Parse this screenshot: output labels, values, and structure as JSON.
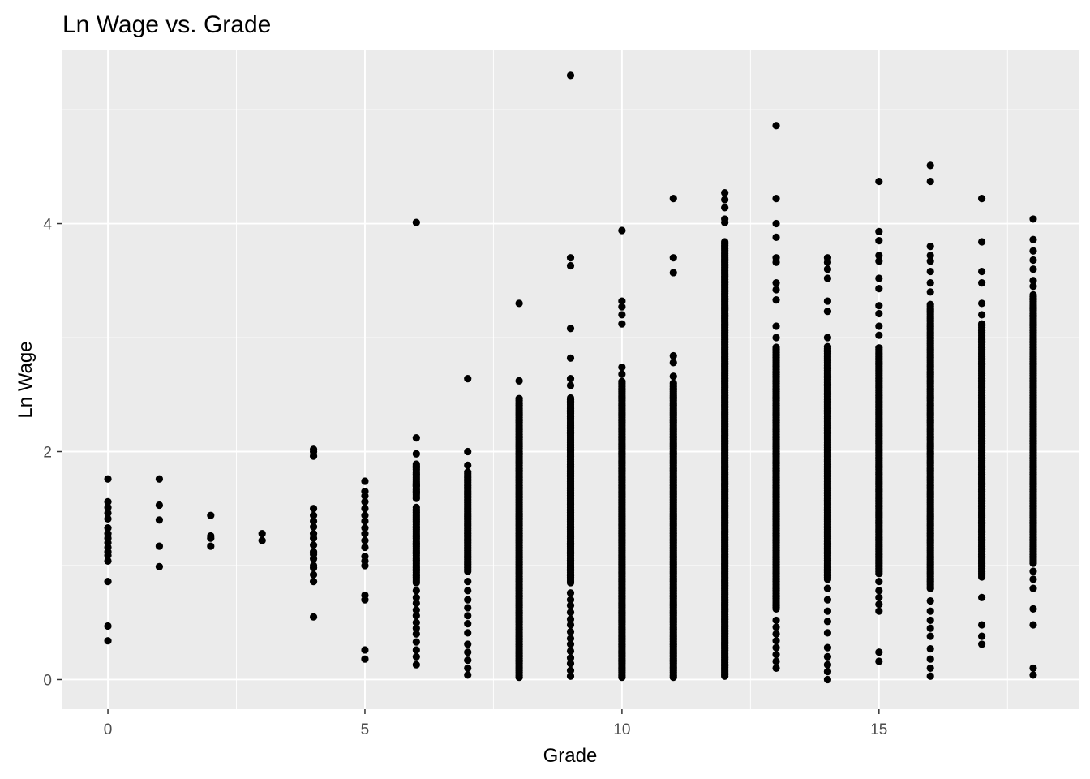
{
  "chart_data": {
    "type": "scatter",
    "title": "Ln Wage vs. Grade",
    "xlabel": "Grade",
    "ylabel": "Ln Wage",
    "xlim": [
      -0.9,
      18.9
    ],
    "ylim": [
      -0.26,
      5.52
    ],
    "x_ticks": [
      0,
      5,
      10,
      15
    ],
    "y_ticks": [
      0,
      2,
      4
    ],
    "x_tick_labels": [
      "0",
      "5",
      "10",
      "15"
    ],
    "y_tick_labels": [
      "0",
      "2",
      "4"
    ],
    "grid": true,
    "legend": "none",
    "colors": {
      "panel": "#ebebeb",
      "grid": "#ffffff",
      "point": "#000000",
      "tick_text": "#4d4d4d"
    },
    "columns": [
      {
        "x": 0,
        "isolated": [
          0.34,
          0.47,
          0.86,
          1.04,
          1.09,
          1.12,
          1.16,
          1.2,
          1.24,
          1.28,
          1.33,
          1.41,
          1.46,
          1.51,
          1.56,
          1.76
        ]
      },
      {
        "x": 1,
        "isolated": [
          0.99,
          1.17,
          1.4,
          1.53,
          1.76
        ]
      },
      {
        "x": 2,
        "isolated": [
          1.17,
          1.24,
          1.26,
          1.44
        ]
      },
      {
        "x": 3,
        "isolated": [
          1.22,
          1.28
        ]
      },
      {
        "x": 4,
        "isolated": [
          0.55,
          0.86,
          0.92,
          0.98,
          1.0,
          1.06,
          1.1,
          1.12,
          1.18,
          1.24,
          1.28,
          1.34,
          1.39,
          1.44,
          1.5,
          1.96,
          2.0,
          2.02
        ]
      },
      {
        "x": 5,
        "isolated": [
          0.18,
          0.26,
          0.7,
          0.74,
          1.0,
          1.04,
          1.08,
          1.16,
          1.22,
          1.28,
          1.33,
          1.39,
          1.44,
          1.5,
          1.56,
          1.61,
          1.65,
          1.74
        ]
      },
      {
        "x": 6,
        "ranges": [
          [
            0.85,
            1.52
          ],
          [
            1.59,
            1.9
          ]
        ],
        "isolated": [
          0.13,
          0.2,
          0.26,
          0.33,
          0.4,
          0.45,
          0.5,
          0.56,
          0.61,
          0.67,
          0.72,
          0.78,
          1.64,
          1.7,
          1.98,
          2.12,
          4.01
        ]
      },
      {
        "x": 7,
        "ranges": [
          [
            0.95,
            1.82
          ]
        ],
        "isolated": [
          0.04,
          0.1,
          0.17,
          0.24,
          0.31,
          0.41,
          0.49,
          0.56,
          0.63,
          0.7,
          0.78,
          0.86,
          1.88,
          2.0,
          2.64
        ]
      },
      {
        "x": 8,
        "ranges": [
          [
            0.02,
            2.47
          ]
        ],
        "isolated": [
          2.62,
          3.3
        ]
      },
      {
        "x": 9,
        "ranges": [
          [
            0.85,
            2.48
          ]
        ],
        "isolated": [
          0.03,
          0.08,
          0.14,
          0.19,
          0.25,
          0.31,
          0.36,
          0.42,
          0.48,
          0.53,
          0.59,
          0.65,
          0.7,
          0.76,
          2.58,
          2.64,
          2.82,
          3.08,
          3.63,
          3.7,
          5.3
        ]
      },
      {
        "x": 10,
        "ranges": [
          [
            0.02,
            2.62
          ]
        ],
        "isolated": [
          2.68,
          2.74,
          3.12,
          3.2,
          3.27,
          3.32,
          3.94
        ]
      },
      {
        "x": 11,
        "ranges": [
          [
            0.02,
            2.6
          ]
        ],
        "isolated": [
          2.66,
          2.78,
          2.84,
          3.57,
          3.7,
          4.22
        ]
      },
      {
        "x": 12,
        "ranges": [
          [
            0.03,
            3.85
          ]
        ],
        "isolated": [
          4.01,
          4.04,
          4.14,
          4.21,
          4.27
        ]
      },
      {
        "x": 13,
        "ranges": [
          [
            0.62,
            2.92
          ]
        ],
        "isolated": [
          0.1,
          0.16,
          0.22,
          0.28,
          0.34,
          0.4,
          0.46,
          0.52,
          3.0,
          3.1,
          3.33,
          3.42,
          3.48,
          3.66,
          3.7,
          3.88,
          4.0,
          4.22,
          4.86
        ]
      },
      {
        "x": 14,
        "ranges": [
          [
            0.88,
            2.92
          ]
        ],
        "isolated": [
          0.0,
          0.07,
          0.13,
          0.2,
          0.28,
          0.41,
          0.51,
          0.6,
          0.7,
          0.8,
          3.0,
          3.23,
          3.32,
          3.52,
          3.6,
          3.66,
          3.7
        ]
      },
      {
        "x": 15,
        "ranges": [
          [
            0.93,
            2.92
          ]
        ],
        "isolated": [
          0.16,
          0.24,
          0.6,
          0.66,
          0.72,
          0.78,
          0.86,
          3.02,
          3.1,
          3.21,
          3.28,
          3.43,
          3.52,
          3.67,
          3.72,
          3.85,
          3.93,
          4.37
        ]
      },
      {
        "x": 16,
        "ranges": [
          [
            0.8,
            3.3
          ]
        ],
        "isolated": [
          0.03,
          0.1,
          0.18,
          0.27,
          0.38,
          0.45,
          0.52,
          0.6,
          0.69,
          3.4,
          3.48,
          3.58,
          3.67,
          3.72,
          3.8,
          4.37,
          4.51
        ]
      },
      {
        "x": 17,
        "ranges": [
          [
            0.9,
            3.12
          ]
        ],
        "isolated": [
          0.31,
          0.38,
          0.48,
          0.72,
          3.2,
          3.3,
          3.48,
          3.58,
          3.84,
          4.22
        ]
      },
      {
        "x": 18,
        "ranges": [
          [
            1.02,
            3.38
          ]
        ],
        "isolated": [
          0.04,
          0.1,
          0.48,
          0.62,
          0.8,
          0.88,
          0.95,
          3.45,
          3.5,
          3.6,
          3.68,
          3.76,
          3.86,
          4.04
        ]
      }
    ]
  }
}
